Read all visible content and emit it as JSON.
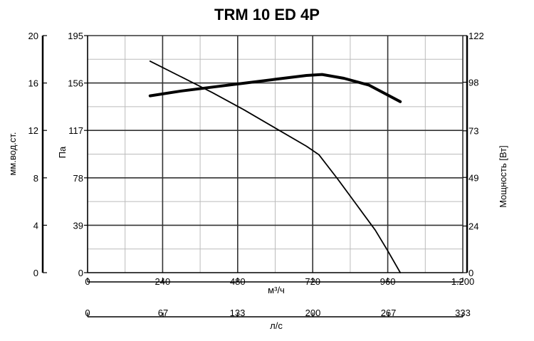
{
  "chart_data": {
    "type": "line",
    "title": "TRM 10 ED 4P",
    "x_axes": {
      "primary": {
        "label": "м³/ч",
        "range": [
          0,
          1200
        ],
        "ticks": [
          0,
          240,
          480,
          720,
          960,
          1200
        ],
        "tick_labels": [
          "0",
          "240",
          "480",
          "720",
          "960",
          "1.200"
        ]
      },
      "secondary": {
        "label": "л/с",
        "range": [
          0,
          333
        ],
        "ticks": [
          0,
          67,
          133,
          200,
          267,
          333
        ],
        "tick_labels": [
          "0",
          "67",
          "133",
          "200",
          "267",
          "333"
        ]
      }
    },
    "y_axes": {
      "pressure_pa": {
        "label": "Па",
        "range": [
          0,
          195
        ],
        "ticks": [
          0,
          39,
          78,
          117,
          156,
          195
        ],
        "tick_labels": [
          "0",
          "39",
          "78",
          "117",
          "156",
          "195"
        ]
      },
      "pressure_mm": {
        "label": "мм.вод.ст.",
        "range": [
          0,
          20
        ],
        "ticks": [
          0,
          4,
          8,
          12,
          16,
          20
        ],
        "tick_labels": [
          "0",
          "4",
          "8",
          "12",
          "16",
          "20"
        ]
      },
      "power_w": {
        "label": "Мощность [Вт]",
        "range": [
          0,
          122
        ],
        "ticks": [
          0,
          24,
          49,
          73,
          98,
          122
        ],
        "tick_labels": [
          "0",
          "24",
          "49",
          "73",
          "98",
          "122"
        ]
      }
    },
    "grid": true,
    "series": [
      {
        "axis": "pressure_pa",
        "stroke": "#000000",
        "weight": "thin",
        "x": [
          200,
          300,
          400,
          500,
          600,
          700,
          740,
          800,
          860,
          920,
          960,
          1000
        ],
        "y": [
          174,
          161,
          148,
          134,
          119,
          104,
          97,
          77,
          56,
          35,
          18,
          0
        ]
      },
      {
        "axis": "power_w",
        "stroke": "#000000",
        "weight": "thick",
        "x": [
          200,
          300,
          400,
          500,
          600,
          700,
          750,
          820,
          900,
          1000
        ],
        "y": [
          91,
          93.5,
          95.5,
          97.5,
          99.5,
          101.5,
          102,
          100,
          96.5,
          88
        ]
      }
    ]
  }
}
